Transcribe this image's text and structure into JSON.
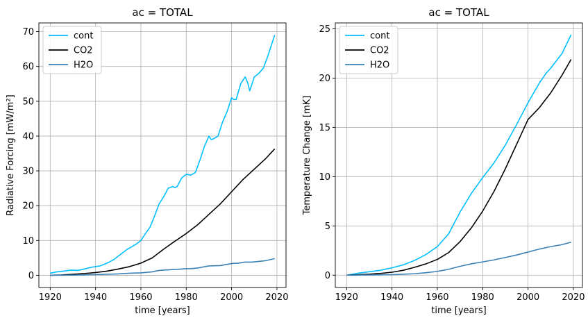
{
  "chart_data": [
    {
      "type": "line",
      "title": "ac = TOTAL",
      "xlabel": "time [years]",
      "ylabel": "Radiative Forcing [mW/m²]",
      "xlim": [
        1915,
        2024
      ],
      "ylim": [
        -3.5,
        72.5
      ],
      "xticks": [
        1920,
        1940,
        1960,
        1980,
        2000,
        2020
      ],
      "yticks": [
        0,
        10,
        20,
        30,
        40,
        50,
        60,
        70
      ],
      "grid": true,
      "legend_position": "top-left",
      "series": [
        {
          "name": "cont",
          "color": "#00bfff",
          "x": [
            1920,
            1923,
            1926,
            1929,
            1932,
            1935,
            1938,
            1940,
            1942,
            1944,
            1946,
            1948,
            1950,
            1952,
            1954,
            1956,
            1958,
            1960,
            1962,
            1964,
            1966,
            1968,
            1970,
            1972,
            1974,
            1975,
            1976,
            1978,
            1980,
            1982,
            1984,
            1986,
            1988,
            1990,
            1991,
            1992,
            1994,
            1996,
            1998,
            2000,
            2001,
            2002,
            2004,
            2005,
            2006,
            2007,
            2008,
            2009,
            2010,
            2012,
            2014,
            2016,
            2019
          ],
          "y": [
            0.6,
            1.0,
            1.2,
            1.5,
            1.4,
            1.8,
            2.3,
            2.5,
            2.7,
            3.2,
            3.8,
            4.5,
            5.5,
            6.5,
            7.5,
            8.2,
            9.0,
            10.0,
            12.0,
            13.8,
            17.0,
            20.5,
            22.5,
            25.0,
            25.5,
            25.2,
            25.5,
            28.0,
            29.0,
            28.8,
            29.5,
            33.0,
            37.0,
            40.0,
            39.0,
            39.2,
            40.0,
            44.0,
            47.0,
            51.0,
            50.5,
            50.5,
            55.0,
            56.0,
            57.0,
            55.5,
            53.0,
            55.0,
            57.0,
            58.0,
            59.5,
            63.0,
            69.0
          ]
        },
        {
          "name": "CO2",
          "color": "#000000",
          "x": [
            1920,
            1925,
            1930,
            1935,
            1940,
            1945,
            1950,
            1955,
            1960,
            1965,
            1970,
            1975,
            1980,
            1985,
            1990,
            1995,
            2000,
            2005,
            2010,
            2015,
            2019
          ],
          "y": [
            0.0,
            0.1,
            0.3,
            0.5,
            0.8,
            1.2,
            1.8,
            2.5,
            3.5,
            5.0,
            7.5,
            9.8,
            12.0,
            14.5,
            17.5,
            20.5,
            24.0,
            27.5,
            30.5,
            33.5,
            36.3
          ]
        },
        {
          "name": "H2O",
          "color": "#3a80b5",
          "x": [
            1920,
            1930,
            1940,
            1950,
            1955,
            1960,
            1965,
            1968,
            1970,
            1975,
            1978,
            1980,
            1982,
            1985,
            1990,
            1995,
            2000,
            2003,
            2006,
            2009,
            2012,
            2015,
            2019
          ],
          "y": [
            0.0,
            0.05,
            0.2,
            0.4,
            0.6,
            0.7,
            1.0,
            1.4,
            1.5,
            1.7,
            1.8,
            1.9,
            1.9,
            2.1,
            2.7,
            2.8,
            3.4,
            3.5,
            3.8,
            3.8,
            4.0,
            4.2,
            4.8
          ]
        }
      ]
    },
    {
      "type": "line",
      "title": "ac = TOTAL",
      "xlabel": "time [years]",
      "ylabel": "Temperature Change [mK]",
      "xlim": [
        1915,
        2024
      ],
      "ylim": [
        -1.25,
        25.6
      ],
      "xticks": [
        1920,
        1940,
        1960,
        1980,
        2000,
        2020
      ],
      "yticks": [
        0,
        5,
        10,
        15,
        20,
        25
      ],
      "grid": true,
      "legend_position": "top-left",
      "series": [
        {
          "name": "cont",
          "color": "#00bfff",
          "x": [
            1920,
            1925,
            1930,
            1935,
            1940,
            1945,
            1950,
            1955,
            1960,
            1965,
            1970,
            1975,
            1980,
            1985,
            1990,
            1995,
            2000,
            2005,
            2008,
            2010,
            2015,
            2019
          ],
          "y": [
            0.0,
            0.2,
            0.35,
            0.5,
            0.75,
            1.05,
            1.5,
            2.1,
            2.9,
            4.2,
            6.4,
            8.3,
            9.9,
            11.4,
            13.2,
            15.3,
            17.5,
            19.5,
            20.5,
            21.0,
            22.5,
            24.4
          ]
        },
        {
          "name": "CO2",
          "color": "#000000",
          "x": [
            1920,
            1925,
            1930,
            1935,
            1940,
            1945,
            1950,
            1955,
            1960,
            1965,
            1970,
            1975,
            1980,
            1985,
            1990,
            1995,
            2000,
            2005,
            2010,
            2015,
            2019
          ],
          "y": [
            0.0,
            0.05,
            0.1,
            0.18,
            0.3,
            0.5,
            0.8,
            1.15,
            1.6,
            2.3,
            3.4,
            4.8,
            6.5,
            8.5,
            10.8,
            13.3,
            15.8,
            17.0,
            18.5,
            20.3,
            21.9
          ]
        },
        {
          "name": "H2O",
          "color": "#3a80b5",
          "x": [
            1920,
            1930,
            1940,
            1945,
            1950,
            1955,
            1960,
            1965,
            1970,
            1975,
            1980,
            1985,
            1990,
            1995,
            2000,
            2005,
            2010,
            2015,
            2019
          ],
          "y": [
            0.0,
            0.02,
            0.05,
            0.1,
            0.15,
            0.25,
            0.38,
            0.6,
            0.9,
            1.15,
            1.35,
            1.55,
            1.8,
            2.05,
            2.35,
            2.65,
            2.9,
            3.1,
            3.35
          ]
        }
      ]
    }
  ]
}
